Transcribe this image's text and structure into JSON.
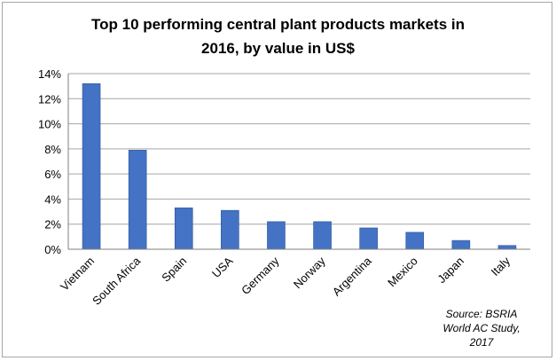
{
  "chart_data": {
    "type": "bar",
    "title_line1": "Top 10 performing central plant products markets in",
    "title_line2": "2016, by value in US$",
    "categories": [
      "Vietnam",
      "South Africa",
      "Spain",
      "USA",
      "Germany",
      "Norway",
      "Argentina",
      "Mexico",
      "Japan",
      "Italy"
    ],
    "values": [
      13.2,
      7.9,
      3.3,
      3.1,
      2.2,
      2.2,
      1.7,
      1.35,
      0.7,
      0.3
    ],
    "ylim": [
      0,
      14
    ],
    "y_ticks": [
      "0%",
      "2%",
      "4%",
      "6%",
      "8%",
      "10%",
      "12%",
      "14%"
    ],
    "y_tick_values": [
      0,
      2,
      4,
      6,
      8,
      10,
      12,
      14
    ],
    "grid": true,
    "bar_color": "#4472c4",
    "annotation_lines": [
      "Source: BSRIA",
      "World AC Study,",
      "2017"
    ]
  }
}
